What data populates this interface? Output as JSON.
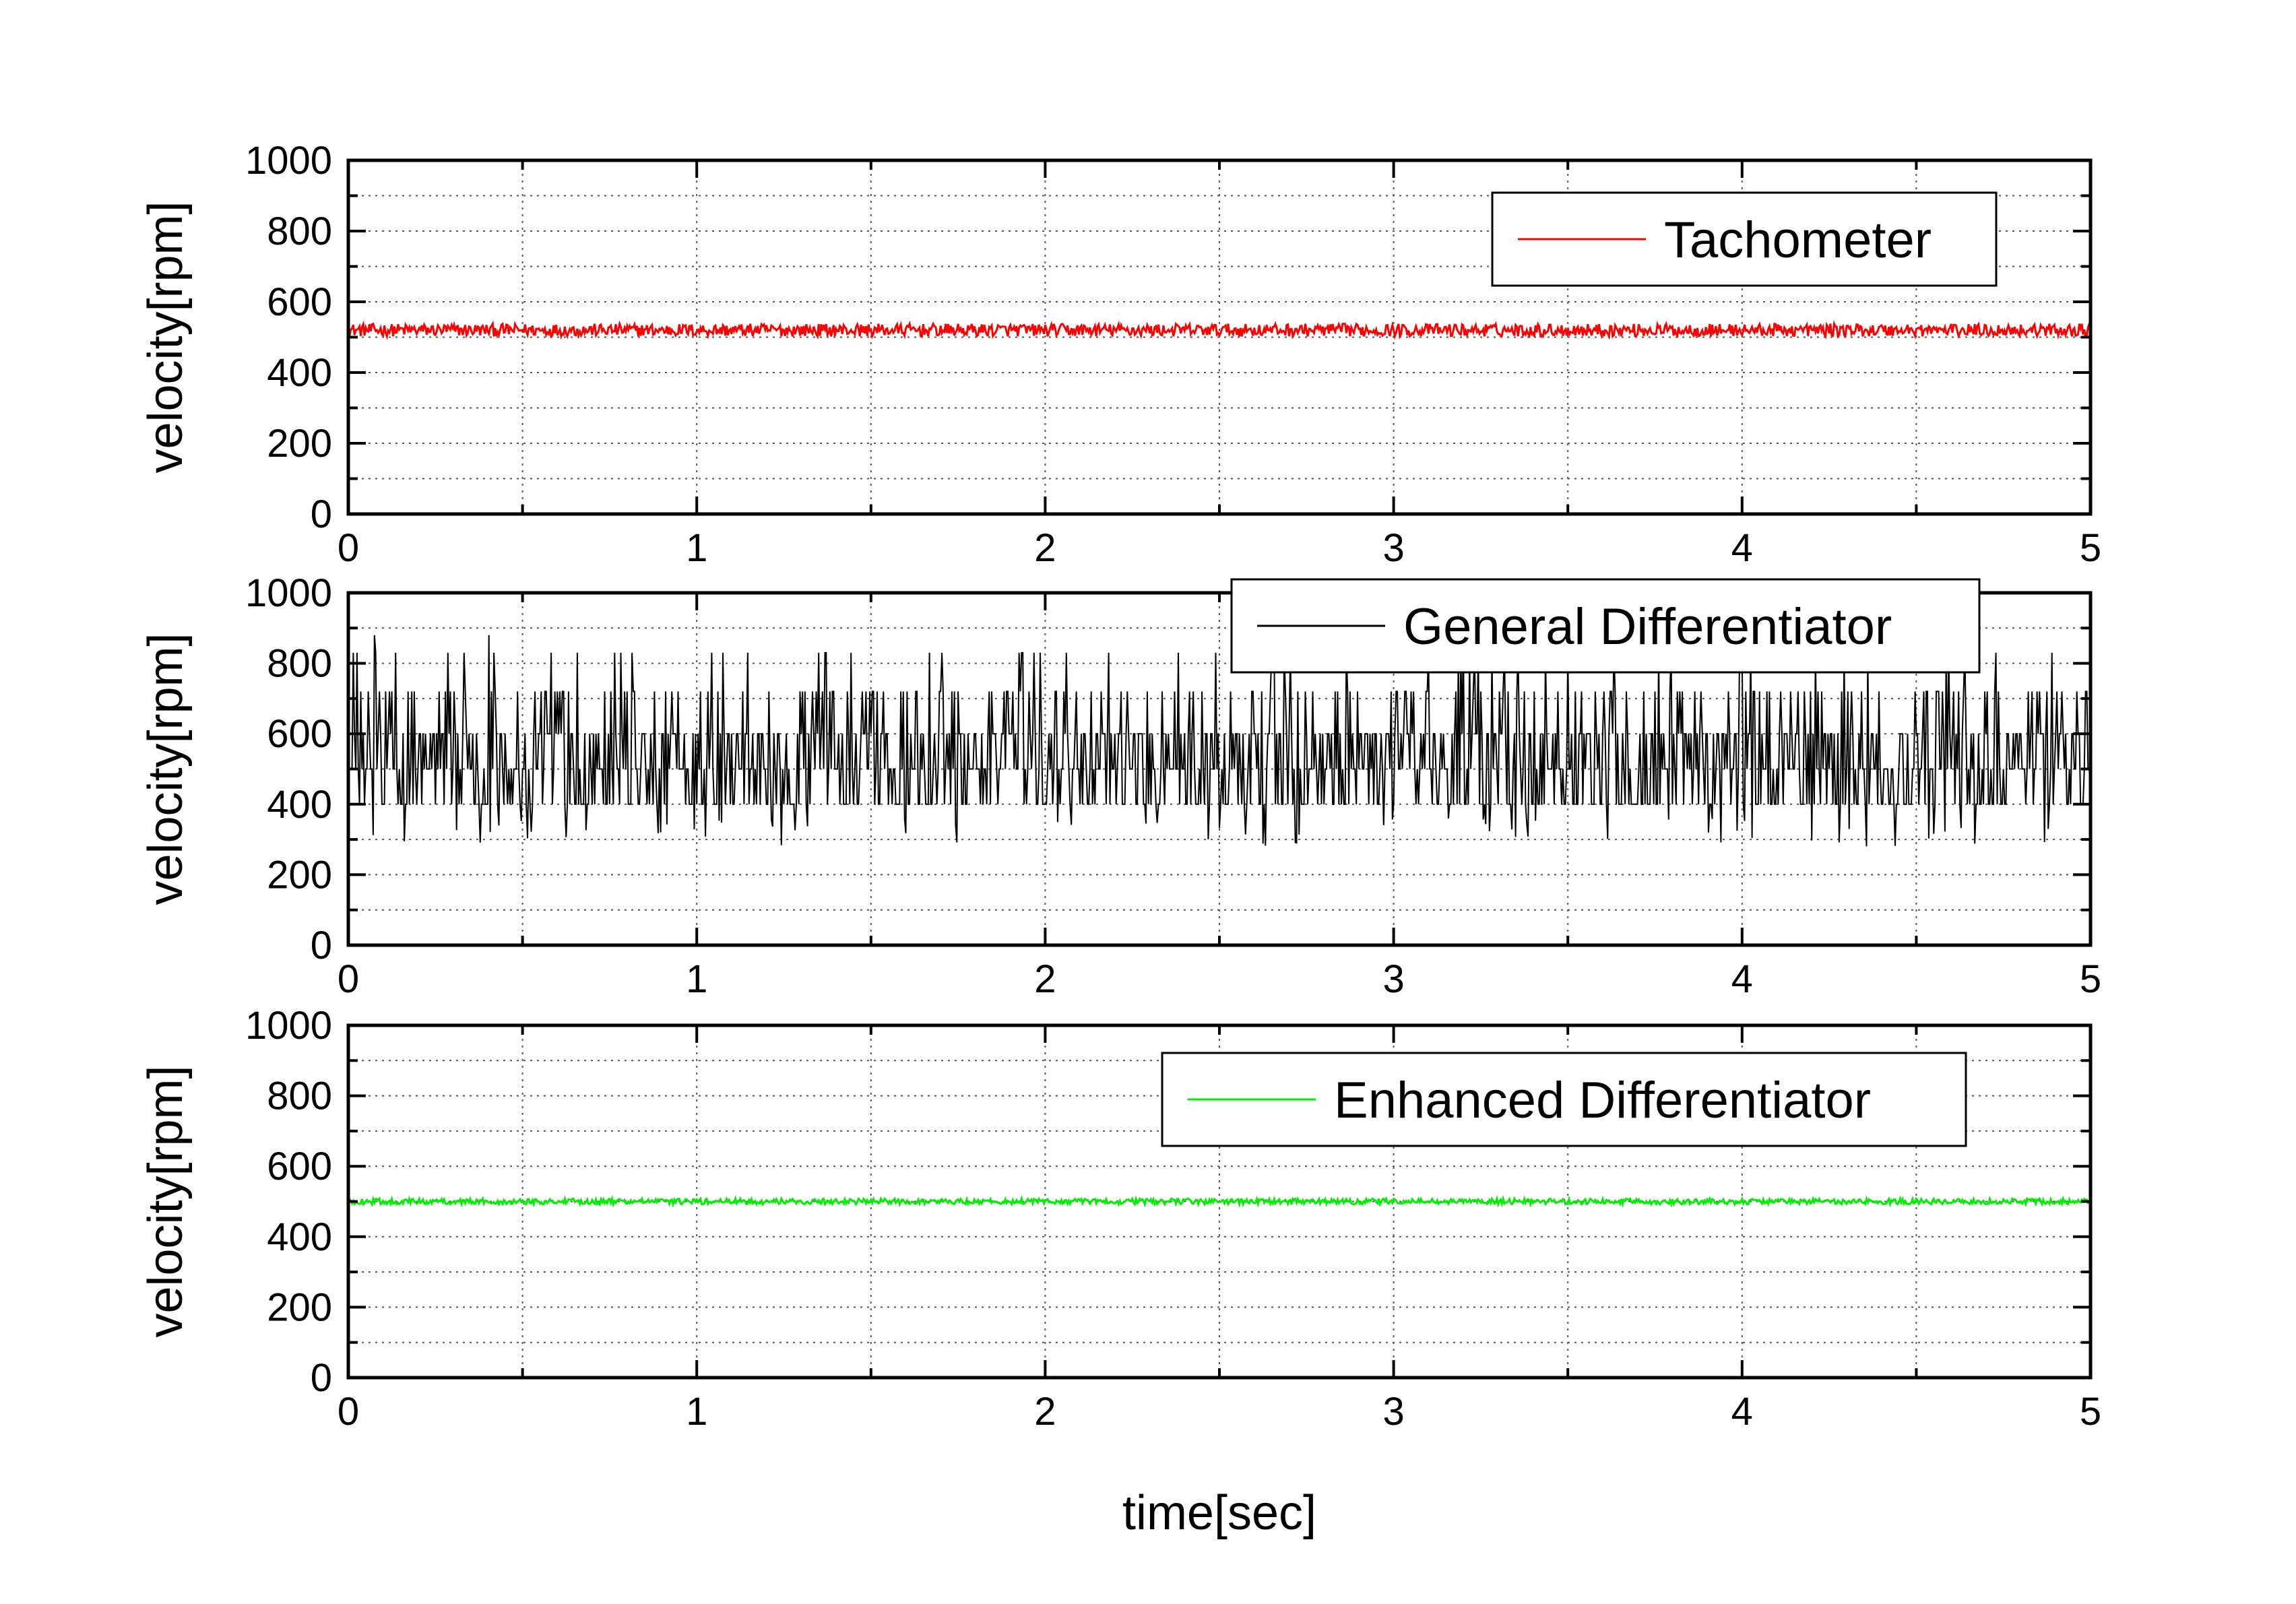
{
  "chart_data": [
    {
      "type": "line",
      "xlabel": "",
      "ylabel": "velocity[rpm]",
      "xlim": [
        0,
        5
      ],
      "ylim": [
        0,
        1000
      ],
      "x_ticks": [
        0,
        1,
        2,
        3,
        4,
        5
      ],
      "y_ticks": [
        0,
        200,
        400,
        600,
        800,
        1000
      ],
      "grid": true,
      "legend_position": "top-right",
      "series": [
        {
          "name": "Tachometer",
          "color": "#ff0000",
          "x_range": [
            0,
            5
          ],
          "mean": 520,
          "noise_amplitude": 18,
          "description_values": {
            "min": 490,
            "max": 550
          }
        }
      ]
    },
    {
      "type": "line",
      "xlabel": "",
      "ylabel": "velocity[rpm]",
      "xlim": [
        0,
        5
      ],
      "ylim": [
        0,
        1000
      ],
      "x_ticks": [
        0,
        1,
        2,
        3,
        4,
        5
      ],
      "y_ticks": [
        0,
        200,
        400,
        600,
        800,
        1000
      ],
      "grid": true,
      "legend_position": "top-right",
      "series": [
        {
          "name": "General Differentiator",
          "color": "#000000",
          "x_range": [
            0,
            5
          ],
          "mean": 500,
          "levels": [
            400,
            500,
            600,
            720,
            830
          ],
          "description_values": {
            "min": 280,
            "max": 890
          }
        }
      ]
    },
    {
      "type": "line",
      "xlabel": "time[sec]",
      "ylabel": "velocity[rpm]",
      "xlim": [
        0,
        5
      ],
      "ylim": [
        0,
        1000
      ],
      "x_ticks": [
        0,
        1,
        2,
        3,
        4,
        5
      ],
      "y_ticks": [
        0,
        200,
        400,
        600,
        800,
        1000
      ],
      "grid": true,
      "legend_position": "top-right",
      "series": [
        {
          "name": "Enhanced Differentiator",
          "color": "#00ee00",
          "x_range": [
            0,
            5
          ],
          "mean": 500,
          "noise_amplitude": 8,
          "description_values": {
            "min": 485,
            "max": 515
          }
        }
      ]
    }
  ]
}
